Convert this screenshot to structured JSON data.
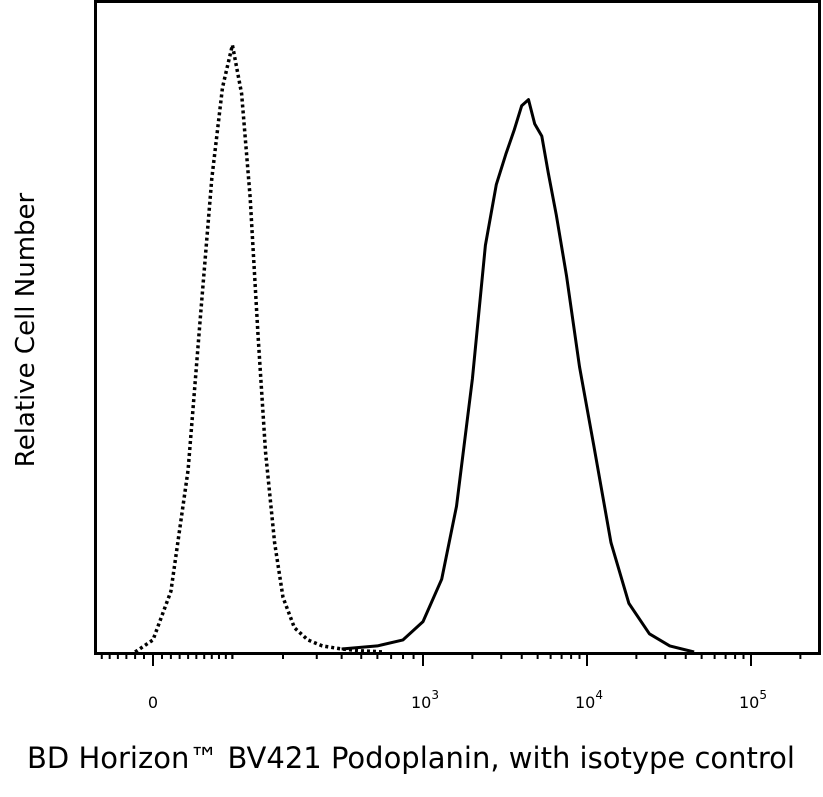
{
  "chart_data": {
    "type": "line",
    "xlabel": "BD Horizon™ BV421 Podoplanin, with isotype control",
    "ylabel": "Relative Cell Number",
    "x_scale": "biexponential",
    "xlim": [
      -200,
      200000
    ],
    "ylim": [
      0,
      100
    ],
    "x_tick_labels": [
      {
        "value": 0,
        "base": "0",
        "exp": ""
      },
      {
        "value": 1000,
        "base": "10",
        "exp": "3"
      },
      {
        "value": 10000,
        "base": "10",
        "exp": "4"
      },
      {
        "value": 100000,
        "base": "10",
        "exp": "5"
      }
    ],
    "series": [
      {
        "style": "dotted",
        "color": "#000000",
        "x": [
          -20,
          0,
          20,
          40,
          55,
          70,
          85,
          100,
          115,
          130,
          145,
          160,
          180,
          200,
          230,
          270,
          320,
          400,
          500,
          650
        ],
        "y": [
          0,
          2,
          10,
          30,
          55,
          78,
          93,
          100,
          92,
          75,
          52,
          33,
          18,
          9,
          4,
          2,
          1,
          0.5,
          0.2,
          0
        ]
      },
      {
        "style": "solid",
        "color": "#000000",
        "x": [
          400,
          600,
          800,
          1000,
          1300,
          1600,
          2000,
          2400,
          2800,
          3200,
          3600,
          4000,
          4400,
          4800,
          5300,
          5800,
          6500,
          7500,
          9000,
          11000,
          14000,
          18000,
          24000,
          32000,
          45000
        ],
        "y": [
          0.5,
          1,
          2,
          5,
          12,
          24,
          45,
          67,
          77,
          82,
          86,
          90,
          91,
          87,
          85,
          79,
          72,
          62,
          47,
          34,
          18,
          8,
          3,
          1,
          0
        ]
      }
    ]
  }
}
